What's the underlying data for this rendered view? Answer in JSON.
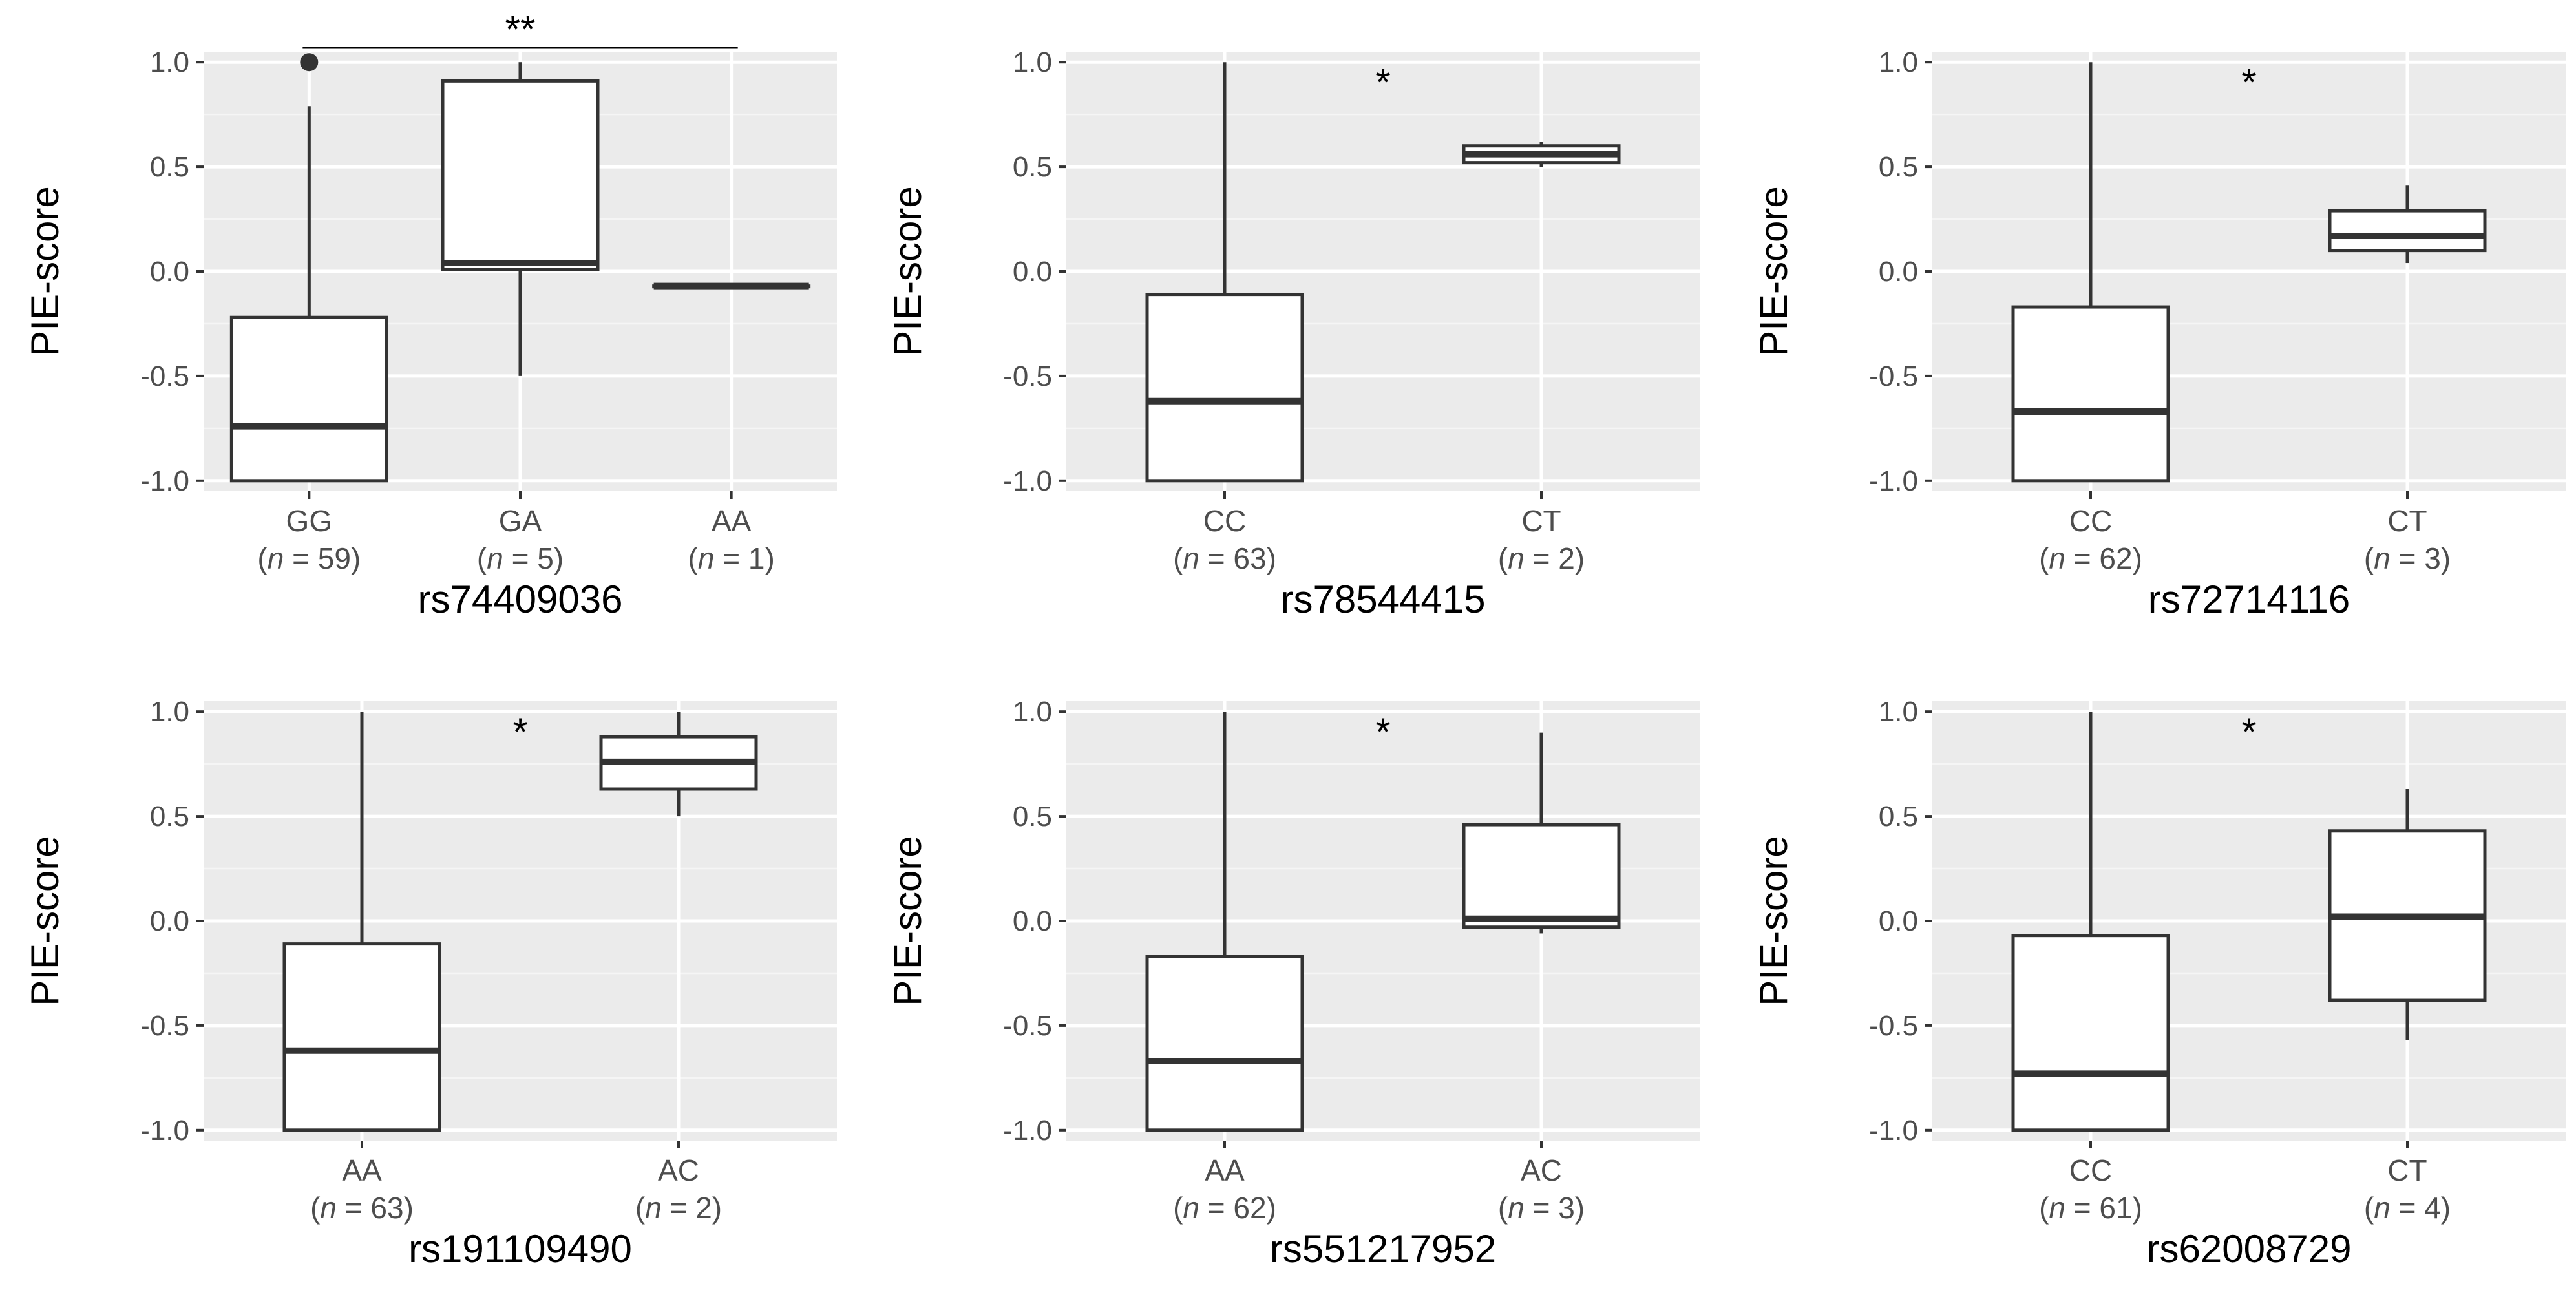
{
  "chart_data": [
    {
      "type": "boxplot",
      "xlabel": "rs74409036",
      "ylabel": "PIE-score",
      "ylim": [
        -1.05,
        1.05
      ],
      "yticks": [
        "-1.0",
        "-0.5",
        "0.0",
        "0.5",
        "1.0"
      ],
      "categories": [
        {
          "label": "GG",
          "n_prefix": "(",
          "n_italic": "n",
          "n_suffix": " = 59)",
          "min": -1.0,
          "q1": -1.0,
          "median": -0.74,
          "q3": -0.22,
          "max": 0.79,
          "outliers": [
            1.0
          ]
        },
        {
          "label": "GA",
          "n_prefix": "(",
          "n_italic": "n",
          "n_suffix": " = 5)",
          "min": -0.5,
          "q1": 0.01,
          "median": 0.04,
          "q3": 0.91,
          "max": 1.0,
          "outliers": []
        },
        {
          "label": "AA",
          "n_prefix": "(",
          "n_italic": "n",
          "n_suffix": " = 1)",
          "min": -0.07,
          "q1": -0.07,
          "median": -0.07,
          "q3": -0.07,
          "max": -0.07,
          "outliers": []
        }
      ],
      "significance": {
        "label": "**",
        "type": "bracket",
        "from": 0,
        "to": 2
      }
    },
    {
      "type": "boxplot",
      "xlabel": "rs78544415",
      "ylabel": "PIE-score",
      "ylim": [
        -1.05,
        1.05
      ],
      "yticks": [
        "-1.0",
        "-0.5",
        "0.0",
        "0.5",
        "1.0"
      ],
      "categories": [
        {
          "label": "CC",
          "n_prefix": "(",
          "n_italic": "n",
          "n_suffix": " = 63)",
          "min": -1.0,
          "q1": -1.0,
          "median": -0.62,
          "q3": -0.11,
          "max": 1.0,
          "outliers": []
        },
        {
          "label": "CT",
          "n_prefix": "(",
          "n_italic": "n",
          "n_suffix": " = 2)",
          "min": 0.5,
          "q1": 0.52,
          "median": 0.56,
          "q3": 0.6,
          "max": 0.62,
          "outliers": []
        }
      ],
      "significance": {
        "label": "*",
        "type": "star",
        "position": 1.5
      }
    },
    {
      "type": "boxplot",
      "xlabel": "rs72714116",
      "ylabel": "PIE-score",
      "ylim": [
        -1.05,
        1.05
      ],
      "yticks": [
        "-1.0",
        "-0.5",
        "0.0",
        "0.5",
        "1.0"
      ],
      "categories": [
        {
          "label": "CC",
          "n_prefix": "(",
          "n_italic": "n",
          "n_suffix": " = 62)",
          "min": -1.0,
          "q1": -1.0,
          "median": -0.67,
          "q3": -0.17,
          "max": 1.0,
          "outliers": []
        },
        {
          "label": "CT",
          "n_prefix": "(",
          "n_italic": "n",
          "n_suffix": " = 3)",
          "min": 0.04,
          "q1": 0.1,
          "median": 0.17,
          "q3": 0.29,
          "max": 0.41,
          "outliers": []
        }
      ],
      "significance": {
        "label": "*",
        "type": "star",
        "position": 1.5
      }
    },
    {
      "type": "boxplot",
      "xlabel": "rs191109490",
      "ylabel": "PIE-score",
      "ylim": [
        -1.05,
        1.05
      ],
      "yticks": [
        "-1.0",
        "-0.5",
        "0.0",
        "0.5",
        "1.0"
      ],
      "categories": [
        {
          "label": "AA",
          "n_prefix": "(",
          "n_italic": "n",
          "n_suffix": " = 63)",
          "min": -1.0,
          "q1": -1.0,
          "median": -0.62,
          "q3": -0.11,
          "max": 1.0,
          "outliers": []
        },
        {
          "label": "AC",
          "n_prefix": "(",
          "n_italic": "n",
          "n_suffix": " = 2)",
          "min": 0.5,
          "q1": 0.63,
          "median": 0.76,
          "q3": 0.88,
          "max": 1.0,
          "outliers": []
        }
      ],
      "significance": {
        "label": "*",
        "type": "star",
        "position": 1.5
      }
    },
    {
      "type": "boxplot",
      "xlabel": "rs551217952",
      "ylabel": "PIE-score",
      "ylim": [
        -1.05,
        1.05
      ],
      "yticks": [
        "-1.0",
        "-0.5",
        "0.0",
        "0.5",
        "1.0"
      ],
      "categories": [
        {
          "label": "AA",
          "n_prefix": "(",
          "n_italic": "n",
          "n_suffix": " = 62)",
          "min": -1.0,
          "q1": -1.0,
          "median": -0.67,
          "q3": -0.17,
          "max": 1.0,
          "outliers": []
        },
        {
          "label": "AC",
          "n_prefix": "(",
          "n_italic": "n",
          "n_suffix": " = 3)",
          "min": -0.06,
          "q1": -0.03,
          "median": 0.01,
          "q3": 0.46,
          "max": 0.9,
          "outliers": []
        }
      ],
      "significance": {
        "label": "*",
        "type": "star",
        "position": 1.5
      }
    },
    {
      "type": "boxplot",
      "xlabel": "rs62008729",
      "ylabel": "PIE-score",
      "ylim": [
        -1.05,
        1.05
      ],
      "yticks": [
        "-1.0",
        "-0.5",
        "0.0",
        "0.5",
        "1.0"
      ],
      "categories": [
        {
          "label": "CC",
          "n_prefix": "(",
          "n_italic": "n",
          "n_suffix": " = 61)",
          "min": -1.0,
          "q1": -1.0,
          "median": -0.73,
          "q3": -0.07,
          "max": 1.0,
          "outliers": []
        },
        {
          "label": "CT",
          "n_prefix": "(",
          "n_italic": "n",
          "n_suffix": " = 4)",
          "min": -0.57,
          "q1": -0.38,
          "median": 0.02,
          "q3": 0.43,
          "max": 0.63,
          "outliers": []
        }
      ],
      "significance": {
        "label": "*",
        "type": "star",
        "position": 1.5
      }
    }
  ]
}
